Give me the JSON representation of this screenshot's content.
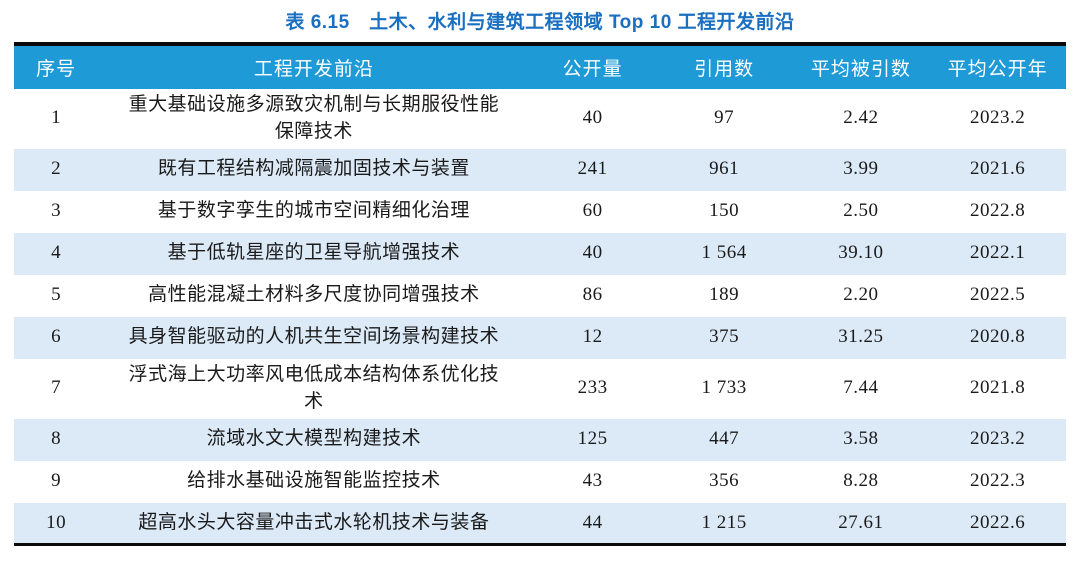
{
  "page": {
    "title": "表 6.15　土木、水利与建筑工程领域 Top 10 工程开发前沿"
  },
  "colors": {
    "title_blue": "#1b6fc1",
    "header_bg": "#1e9ad6",
    "header_text": "#ffffff",
    "zebra_row_bg": "#dceaf8",
    "border_black": "#0a0a0a",
    "body_text": "#1a1a1a"
  },
  "table": {
    "headers": [
      {
        "key": "no",
        "label": "序号"
      },
      {
        "key": "frontier",
        "label": "工程开发前沿"
      },
      {
        "key": "publications",
        "label": "公开量"
      },
      {
        "key": "citations",
        "label": "引用数"
      },
      {
        "key": "avg_citations",
        "label": "平均被引数"
      },
      {
        "key": "avg_year",
        "label": "平均公开年"
      }
    ],
    "rows": [
      {
        "no": "1",
        "frontier": "重大基础设施多源致灾机制与长期服役性能保障技术",
        "publications": "40",
        "citations": "97",
        "avg_citations": "2.42",
        "avg_year": "2023.2"
      },
      {
        "no": "2",
        "frontier": "既有工程结构减隔震加固技术与装置",
        "publications": "241",
        "citations": "961",
        "avg_citations": "3.99",
        "avg_year": "2021.6"
      },
      {
        "no": "3",
        "frontier": "基于数字孪生的城市空间精细化治理",
        "publications": "60",
        "citations": "150",
        "avg_citations": "2.50",
        "avg_year": "2022.8"
      },
      {
        "no": "4",
        "frontier": "基于低轨星座的卫星导航增强技术",
        "publications": "40",
        "citations": "1 564",
        "avg_citations": "39.10",
        "avg_year": "2022.1"
      },
      {
        "no": "5",
        "frontier": "高性能混凝土材料多尺度协同增强技术",
        "publications": "86",
        "citations": "189",
        "avg_citations": "2.20",
        "avg_year": "2022.5"
      },
      {
        "no": "6",
        "frontier": "具身智能驱动的人机共生空间场景构建技术",
        "publications": "12",
        "citations": "375",
        "avg_citations": "31.25",
        "avg_year": "2020.8"
      },
      {
        "no": "7",
        "frontier": "浮式海上大功率风电低成本结构体系优化技术",
        "publications": "233",
        "citations": "1 733",
        "avg_citations": "7.44",
        "avg_year": "2021.8"
      },
      {
        "no": "8",
        "frontier": "流域水文大模型构建技术",
        "publications": "125",
        "citations": "447",
        "avg_citations": "3.58",
        "avg_year": "2023.2"
      },
      {
        "no": "9",
        "frontier": "给排水基础设施智能监控技术",
        "publications": "43",
        "citations": "356",
        "avg_citations": "8.28",
        "avg_year": "2022.3"
      },
      {
        "no": "10",
        "frontier": "超高水头大容量冲击式水轮机技术与装备",
        "publications": "44",
        "citations": "1 215",
        "avg_citations": "27.61",
        "avg_year": "2022.6"
      }
    ]
  }
}
